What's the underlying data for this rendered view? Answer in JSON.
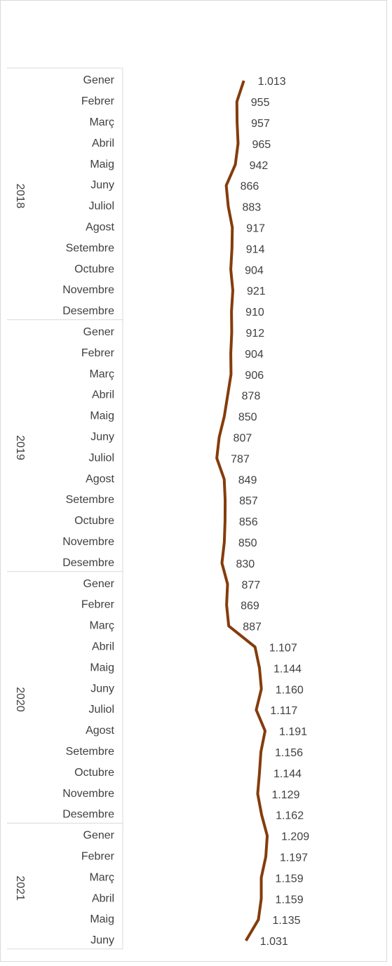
{
  "chart_data": {
    "type": "line",
    "orientation": "vertical",
    "color": "#843c0c",
    "groups": [
      {
        "name": "2018",
        "months": [
          "Gener",
          "Febrer",
          "Març",
          "Abril",
          "Maig",
          "Juny",
          "Juliol",
          "Agost",
          "Setembre",
          "Octubre",
          "Novembre",
          "Desembre"
        ]
      },
      {
        "name": "2019",
        "months": [
          "Gener",
          "Febrer",
          "Març",
          "Abril",
          "Maig",
          "Juny",
          "Juliol",
          "Agost",
          "Setembre",
          "Octubre",
          "Novembre",
          "Desembre"
        ]
      },
      {
        "name": "2020",
        "months": [
          "Gener",
          "Febrer",
          "Març",
          "Abril",
          "Maig",
          "Juny",
          "Juliol",
          "Agost",
          "Setembre",
          "Octubre",
          "Novembre",
          "Desembre"
        ]
      },
      {
        "name": "2021",
        "months": [
          "Gener",
          "Febrer",
          "Març",
          "Abril",
          "Maig",
          "Juny"
        ]
      }
    ],
    "values": [
      1013,
      955,
      957,
      965,
      942,
      866,
      883,
      917,
      914,
      904,
      921,
      910,
      912,
      904,
      906,
      878,
      850,
      807,
      787,
      849,
      857,
      856,
      850,
      830,
      877,
      869,
      887,
      1107,
      1144,
      1160,
      1117,
      1191,
      1156,
      1144,
      1129,
      1162,
      1209,
      1197,
      1159,
      1159,
      1135,
      1031
    ],
    "value_labels": [
      "1.013",
      "955",
      "957",
      "965",
      "942",
      "866",
      "883",
      "917",
      "914",
      "904",
      "921",
      "910",
      "912",
      "904",
      "906",
      "878",
      "850",
      "807",
      "787",
      "849",
      "857",
      "856",
      "850",
      "830",
      "877",
      "869",
      "887",
      "1.107",
      "1.144",
      "1.160",
      "1.117",
      "1.191",
      "1.156",
      "1.144",
      "1.129",
      "1.162",
      "1.209",
      "1.197",
      "1.159",
      "1.159",
      "1.135",
      "1.031"
    ],
    "xlim": [
      0,
      2200
    ]
  }
}
